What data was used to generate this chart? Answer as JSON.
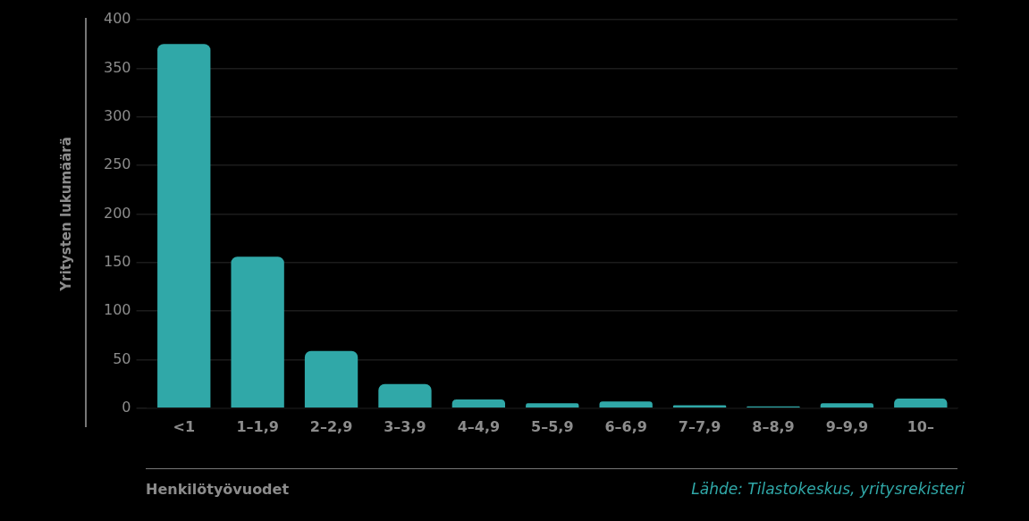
{
  "chart_data": {
    "type": "bar",
    "categories": [
      "<1",
      "1–1,9",
      "2–2,9",
      "3–3,9",
      "4–4,9",
      "5–5,9",
      "6–6,9",
      "7–7,9",
      "8–8,9",
      "9–9,9",
      "10–"
    ],
    "values": [
      375,
      156,
      59,
      25,
      9,
      5,
      7,
      3,
      2,
      5,
      10
    ],
    "color": "#30a8a8",
    "ylim": [
      0,
      400
    ],
    "yticks": [
      0,
      50,
      100,
      150,
      200,
      250,
      300,
      350,
      400
    ],
    "grid": "y",
    "ylabel": "Yritysten lukumäärä",
    "xlabel": "Henkilötyövuodet",
    "annotations": [
      "Lähde: Tilastokeskus, yritysrekisteri"
    ],
    "legend": false
  }
}
